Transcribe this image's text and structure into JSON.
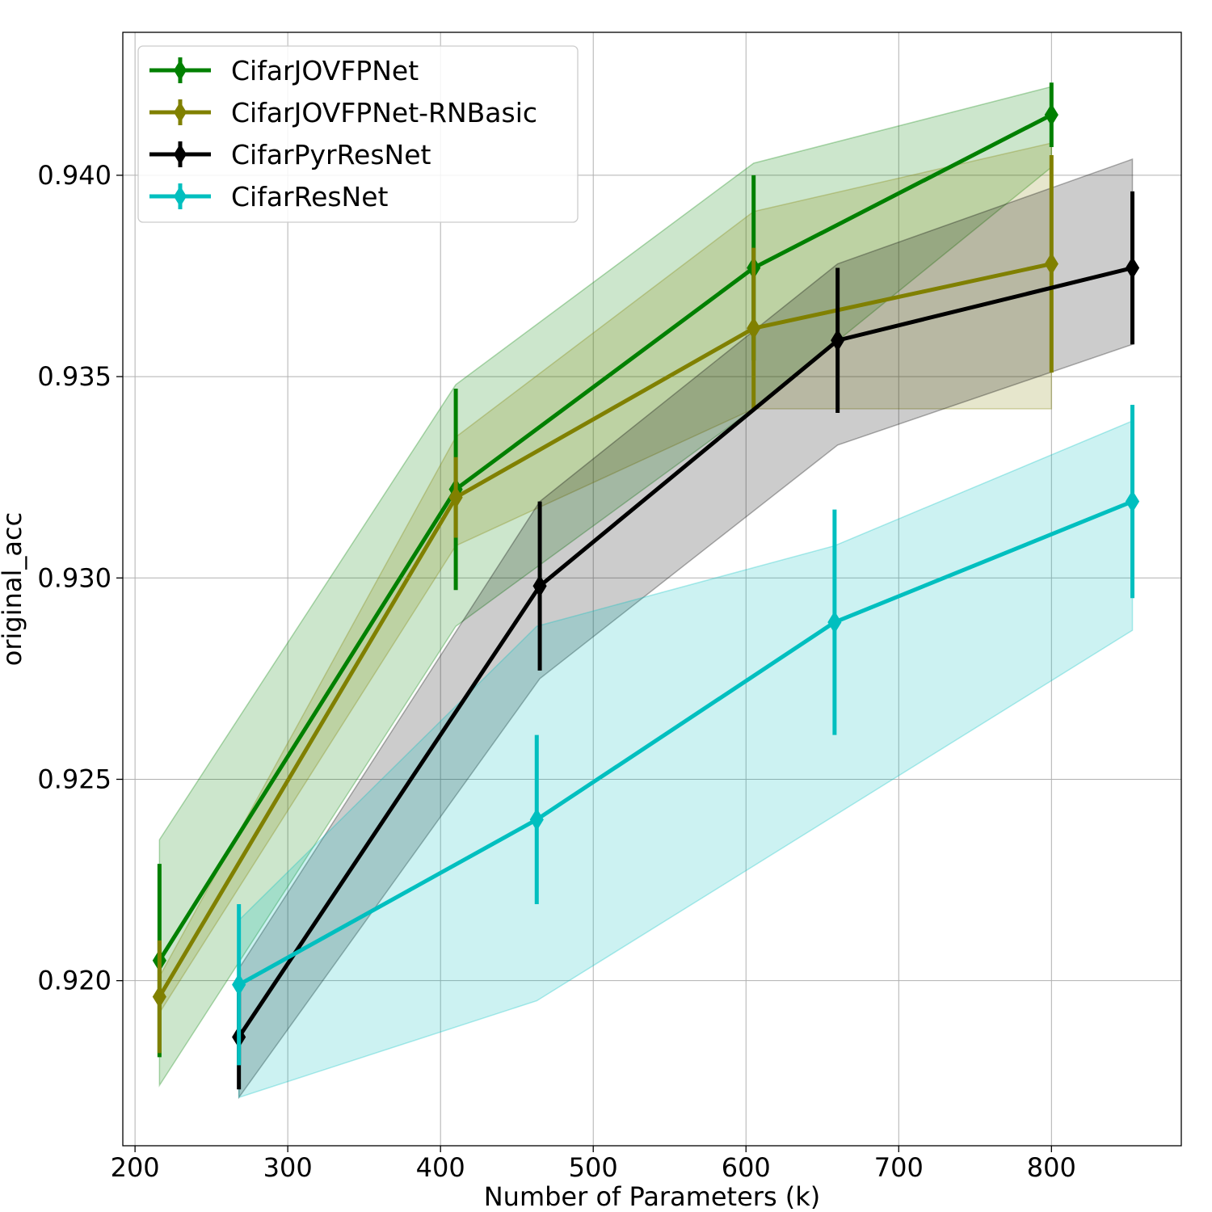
{
  "chart_data": {
    "type": "line",
    "title": "",
    "xlabel": "Number of Parameters (k)",
    "ylabel": "original_acc",
    "xlim": [
      192,
      885
    ],
    "ylim": [
      0.9159,
      0.94355
    ],
    "x_ticks": [
      200,
      300,
      400,
      500,
      600,
      700,
      800
    ],
    "x_tick_labels": [
      "200",
      "300",
      "400",
      "500",
      "600",
      "700",
      "800"
    ],
    "y_ticks": [
      0.92,
      0.925,
      0.93,
      0.935,
      0.94
    ],
    "y_tick_labels": [
      "0.920",
      "0.925",
      "0.930",
      "0.935",
      "0.940"
    ],
    "grid": true,
    "legend_position": "top-left",
    "series": [
      {
        "name": "CifarJOVFPNet",
        "color": "#008000",
        "x": [
          216,
          410,
          605,
          800
        ],
        "y": [
          0.9205,
          0.9322,
          0.9377,
          0.9415
        ],
        "err": [
          0.0024,
          0.0025,
          0.0023,
          0.0008
        ],
        "band_low": [
          0.9174,
          0.9288,
          0.9342,
          0.9402
        ],
        "band_high": [
          0.9235,
          0.9348,
          0.9403,
          0.9422
        ]
      },
      {
        "name": "CifarJOVFPNet-RNBasic",
        "color": "#808000",
        "x": [
          216,
          410,
          605,
          800
        ],
        "y": [
          0.9196,
          0.932,
          0.9362,
          0.9378
        ],
        "err": [
          0.0014,
          0.001,
          0.002,
          0.0027
        ],
        "band_low": [
          0.9192,
          0.9308,
          0.9342,
          0.9342
        ],
        "band_high": [
          0.9201,
          0.9335,
          0.9391,
          0.9408
        ]
      },
      {
        "name": "CifarPyrResNet",
        "color": "#000000",
        "x": [
          268,
          465,
          660,
          853
        ],
        "y": [
          0.9186,
          0.9298,
          0.9359,
          0.9377
        ],
        "err": [
          0.0013,
          0.0021,
          0.0018,
          0.0019
        ],
        "band_low": [
          0.9171,
          0.9275,
          0.9333,
          0.9358
        ],
        "band_high": [
          0.9203,
          0.9319,
          0.9378,
          0.9404
        ]
      },
      {
        "name": "CifarResNet",
        "color": "#00bfbf",
        "x": [
          268,
          463,
          658,
          853
        ],
        "y": [
          0.9199,
          0.924,
          0.9289,
          0.9319
        ],
        "err": [
          0.002,
          0.0021,
          0.0028,
          0.0024
        ],
        "band_low": [
          0.9171,
          0.9195,
          0.9241,
          0.9287
        ],
        "band_high": [
          0.9215,
          0.9288,
          0.9308,
          0.9339
        ]
      }
    ]
  }
}
